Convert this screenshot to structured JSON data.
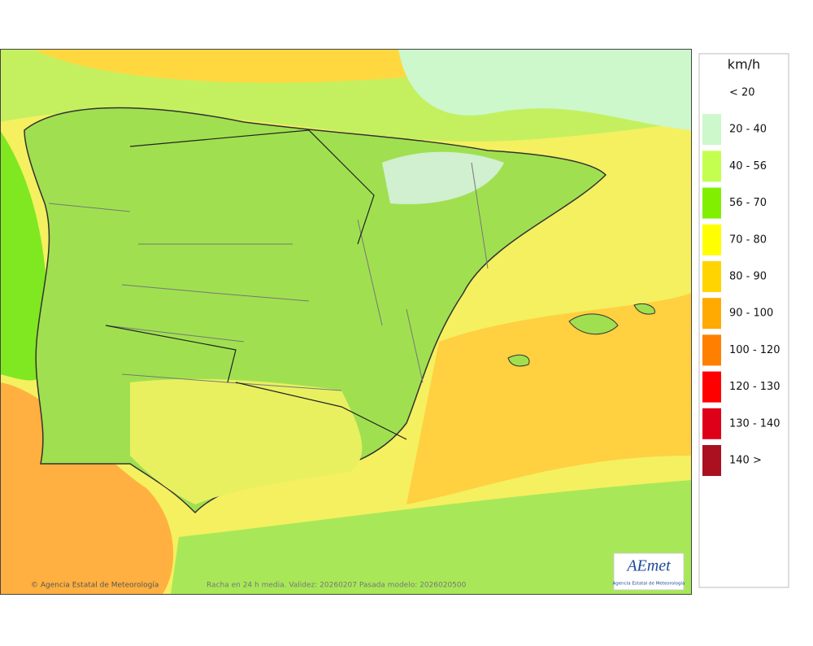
{
  "map": {
    "attribution": "© Agencia Estatal de Meteorología",
    "caption": "Racha en 24 h media. Validez: 20260207 Pasada modelo: 2026020500",
    "logo": {
      "name": "AEmet",
      "subtitle": "Agencia Estatal de Meteorología"
    }
  },
  "legend": {
    "title": "km/h",
    "items": [
      {
        "label": "< 20",
        "color": "#ffffff"
      },
      {
        "label": "20 - 40",
        "color": "#ccf8cc"
      },
      {
        "label": "40 - 56",
        "color": "#c4ff50"
      },
      {
        "label": "56 - 70",
        "color": "#80f000"
      },
      {
        "label": "70 - 80",
        "color": "#ffff00"
      },
      {
        "label": "80 - 90",
        "color": "#ffd400"
      },
      {
        "label": "90 - 100",
        "color": "#ffaa00"
      },
      {
        "label": "100 - 120",
        "color": "#ff8000"
      },
      {
        "label": "120 - 130",
        "color": "#ff0000"
      },
      {
        "label": "130 - 140",
        "color": "#dd0018"
      },
      {
        "label": "140 >",
        "color": "#aa1020"
      }
    ]
  }
}
